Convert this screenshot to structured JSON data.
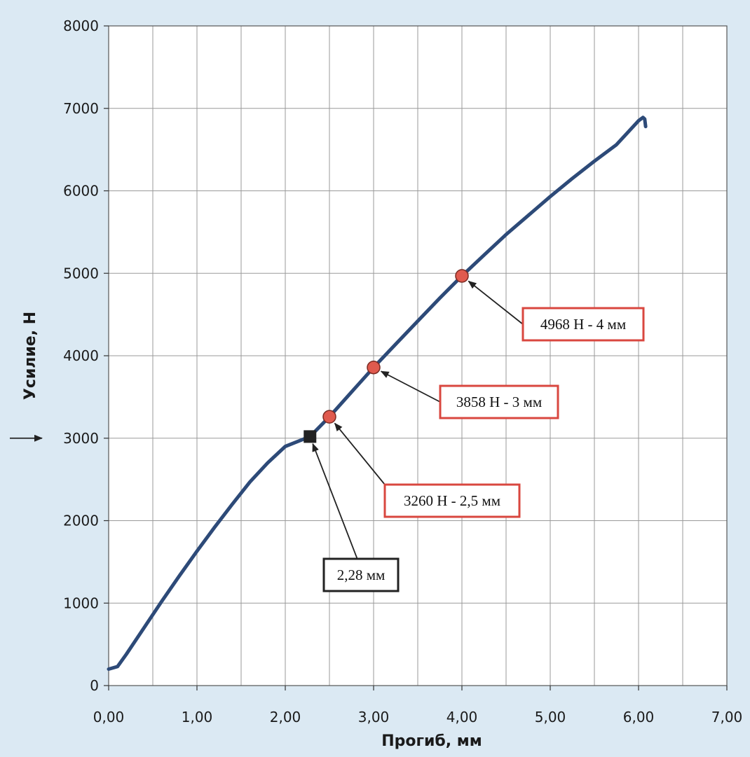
{
  "chart_data": {
    "type": "line",
    "xlabel": "Прогиб, мм",
    "ylabel": "Усилие, Н",
    "xlim": [
      0,
      7
    ],
    "ylim": [
      0,
      8000
    ],
    "x_ticks": [
      "0,00",
      "1,00",
      "2,00",
      "3,00",
      "4,00",
      "5,00",
      "6,00",
      "7,00"
    ],
    "x_tick_values": [
      0,
      1,
      2,
      3,
      4,
      5,
      6,
      7
    ],
    "x_minor_step": 0.5,
    "y_ticks": [
      "0",
      "1000",
      "2000",
      "3000",
      "4000",
      "5000",
      "6000",
      "7000",
      "8000"
    ],
    "y_tick_values": [
      0,
      1000,
      2000,
      3000,
      4000,
      5000,
      6000,
      7000,
      8000
    ],
    "grid": true,
    "series": [
      {
        "color": "#2d4a78",
        "points": [
          [
            0.0,
            200
          ],
          [
            0.1,
            230
          ],
          [
            0.2,
            380
          ],
          [
            0.4,
            700
          ],
          [
            0.6,
            1020
          ],
          [
            0.8,
            1330
          ],
          [
            1.0,
            1630
          ],
          [
            1.2,
            1920
          ],
          [
            1.4,
            2200
          ],
          [
            1.6,
            2470
          ],
          [
            1.8,
            2700
          ],
          [
            2.0,
            2900
          ],
          [
            2.28,
            3020
          ],
          [
            2.5,
            3260
          ],
          [
            2.75,
            3560
          ],
          [
            3.0,
            3858
          ],
          [
            3.25,
            4140
          ],
          [
            3.5,
            4420
          ],
          [
            3.75,
            4700
          ],
          [
            4.0,
            4968
          ],
          [
            4.25,
            5220
          ],
          [
            4.5,
            5470
          ],
          [
            4.75,
            5700
          ],
          [
            5.0,
            5930
          ],
          [
            5.25,
            6150
          ],
          [
            5.5,
            6360
          ],
          [
            5.75,
            6560
          ],
          [
            6.0,
            6850
          ],
          [
            6.05,
            6890
          ],
          [
            6.07,
            6870
          ],
          [
            6.08,
            6780
          ]
        ]
      }
    ],
    "markers": [
      {
        "x": 2.5,
        "y": 3260,
        "shape": "circle",
        "color": "#e05a4e",
        "label": "3260 Н - 2,5 мм",
        "border": "#d9473f"
      },
      {
        "x": 3.0,
        "y": 3858,
        "shape": "circle",
        "color": "#e05a4e",
        "label": "3858 Н - 3 мм",
        "border": "#d9473f"
      },
      {
        "x": 4.0,
        "y": 4968,
        "shape": "circle",
        "color": "#e05a4e",
        "label": "4968 Н - 4 мм",
        "border": "#d9473f"
      },
      {
        "x": 2.28,
        "y": 3020,
        "shape": "square",
        "color": "#222222",
        "label": "2,28 мм",
        "border": "#222222"
      }
    ],
    "y_side_arrow_value": 3000
  }
}
